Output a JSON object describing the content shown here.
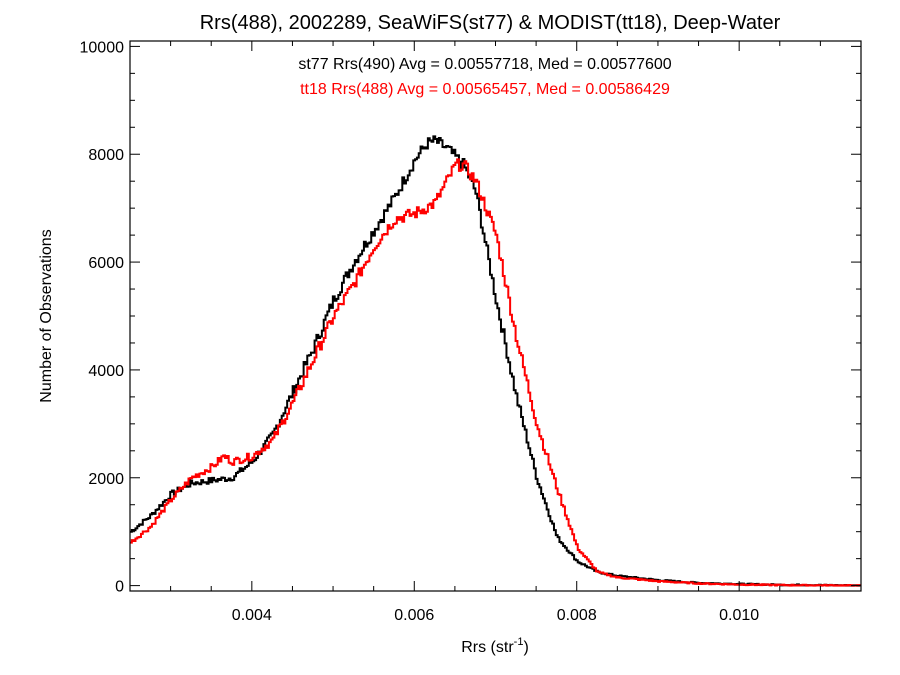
{
  "chart_data": {
    "type": "line",
    "step": true,
    "title": "Rrs(488), 2002289, SeaWiFS(st77) & MODIST(tt18), Deep-Water",
    "xlabel": "Rrs (str",
    "xlabel_sup": "-1",
    "xlabel_close": ")",
    "ylabel": "Number of Observations",
    "xlim": [
      0.0025,
      0.0115
    ],
    "ylim": [
      -100,
      10100
    ],
    "xticks": [
      0.004,
      0.006,
      0.008,
      0.01
    ],
    "xtick_labels": [
      "0.004",
      "0.006",
      "0.008",
      "0.010"
    ],
    "yticks": [
      0,
      2000,
      4000,
      6000,
      8000,
      10000
    ],
    "ytick_labels": [
      "0",
      "2000",
      "4000",
      "6000",
      "8000",
      "10000"
    ],
    "grid": false,
    "legend_position": "top-center",
    "series": [
      {
        "name": "st77 Rrs(490) Avg = 0.00557718, Med = 0.00577600",
        "color": "#000000",
        "x": [
          0.0025,
          0.00275,
          0.003,
          0.00325,
          0.0035,
          0.00375,
          0.004,
          0.00425,
          0.0045,
          0.00475,
          0.005,
          0.00525,
          0.0055,
          0.00575,
          0.006,
          0.00615,
          0.00625,
          0.0064,
          0.0066,
          0.00675,
          0.007,
          0.00725,
          0.0075,
          0.00775,
          0.008,
          0.00825,
          0.0085,
          0.009,
          0.0095,
          0.01,
          0.0105,
          0.011,
          0.0115
        ],
        "y": [
          1000,
          1300,
          1700,
          1900,
          1950,
          2000,
          2300,
          2800,
          3600,
          4400,
          5300,
          6000,
          6600,
          7200,
          7900,
          8200,
          8250,
          8100,
          7800,
          7300,
          5300,
          3500,
          2000,
          900,
          450,
          250,
          180,
          100,
          50,
          30,
          15,
          10,
          0
        ]
      },
      {
        "name": "tt18 Rrs(488) Avg = 0.00565457, Med = 0.00586429",
        "color": "#ff0000",
        "x": [
          0.0025,
          0.00275,
          0.003,
          0.00325,
          0.0035,
          0.00365,
          0.00375,
          0.004,
          0.00425,
          0.0045,
          0.00475,
          0.005,
          0.00525,
          0.0055,
          0.00575,
          0.006,
          0.00625,
          0.0065,
          0.0066,
          0.00675,
          0.007,
          0.00725,
          0.0075,
          0.00775,
          0.008,
          0.00825,
          0.0085,
          0.009,
          0.0095,
          0.01,
          0.0105,
          0.011,
          0.0115
        ],
        "y": [
          800,
          1100,
          1600,
          2000,
          2200,
          2400,
          2300,
          2400,
          2700,
          3400,
          4200,
          5000,
          5600,
          6300,
          6800,
          6900,
          7100,
          7800,
          7800,
          7500,
          6500,
          4600,
          3000,
          1800,
          700,
          250,
          150,
          80,
          40,
          20,
          10,
          5,
          0
        ]
      }
    ]
  }
}
